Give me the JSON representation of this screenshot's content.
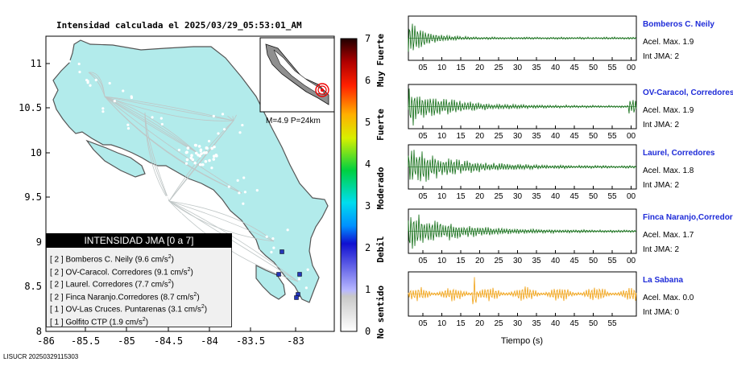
{
  "map": {
    "title": "Intensidad calculada el 2025/03/29_05:53:01_AM",
    "lon_ticks": [
      "-86",
      "-85.5",
      "-85",
      "-84.5",
      "-84",
      "-83.5",
      "-83"
    ],
    "lat_ticks": [
      "11",
      "10.5",
      "10",
      "9.5",
      "9",
      "8.5",
      "8"
    ],
    "inset_label": "M=4.9 P=24km",
    "footer": "LISUCR 20250329115303",
    "land_color": "#b2ebeb",
    "station_color": "#2436b8"
  },
  "scale": {
    "ticks": [
      "0",
      "1",
      "2",
      "3",
      "4",
      "5",
      "6",
      "7"
    ],
    "labels": [
      "No sentido",
      "Debil",
      "Moderado",
      "Fuerte",
      "Muy Fuerte"
    ]
  },
  "legend": {
    "title": "INTENSIDAD JMA [0 a 7]",
    "rows": [
      {
        "level": "[ 2 ]",
        "text": "Bomberos C. Neily (9.6 cm/s",
        "sup": "2",
        "close": ")"
      },
      {
        "level": "[ 2 ]",
        "text": "OV-Caracol. Corredores (9.1 cm/s",
        "sup": "2",
        "close": ")"
      },
      {
        "level": "[ 2 ]",
        "text": "Laurel. Corredores (7.7 cm/s",
        "sup": "2",
        "close": ")"
      },
      {
        "level": "[ 2 ]",
        "text": "Finca Naranjo.Corredores (8.7 cm/s",
        "sup": "2",
        "close": ")"
      },
      {
        "level": "[ 1 ]",
        "text": "OV-Las Cruces. Puntarenas (3.1 cm/s",
        "sup": "2",
        "close": ")"
      },
      {
        "level": "[ 1 ]",
        "text": "Golfito CTP (1.9 cm/s",
        "sup": "2",
        "close": ")"
      }
    ]
  },
  "waveforms": {
    "x_ticks": [
      "05",
      "10",
      "15",
      "20",
      "25",
      "30",
      "35",
      "40",
      "45",
      "50",
      "55",
      "00"
    ],
    "x_ticks_last": [
      "05",
      "10",
      "15",
      "20",
      "25",
      "30",
      "35",
      "40",
      "45",
      "50",
      "55"
    ],
    "xlabel": "Tiempo (s)",
    "stations": [
      {
        "name": "Bomberos C. Neily",
        "acel": "Acel. Max. 1.9",
        "int": "Int JMA: 2",
        "color": "#0e6b12"
      },
      {
        "name": "OV-Caracol, Corredores",
        "acel": "Acel. Max. 1.9",
        "int": "Int JMA: 2",
        "color": "#0e6b12"
      },
      {
        "name": "Laurel, Corredores",
        "acel": "Acel. Max. 1.8",
        "int": "Int JMA: 2",
        "color": "#0e6b12"
      },
      {
        "name": "Finca Naranjo,Corredores",
        "acel": "Acel. Max. 1.7",
        "int": "Int JMA: 2",
        "color": "#0e6b12"
      },
      {
        "name": "La Sabana",
        "acel": "Acel. Max. 0.0",
        "int": "Int JMA: 0",
        "color": "#f0a010"
      }
    ]
  }
}
